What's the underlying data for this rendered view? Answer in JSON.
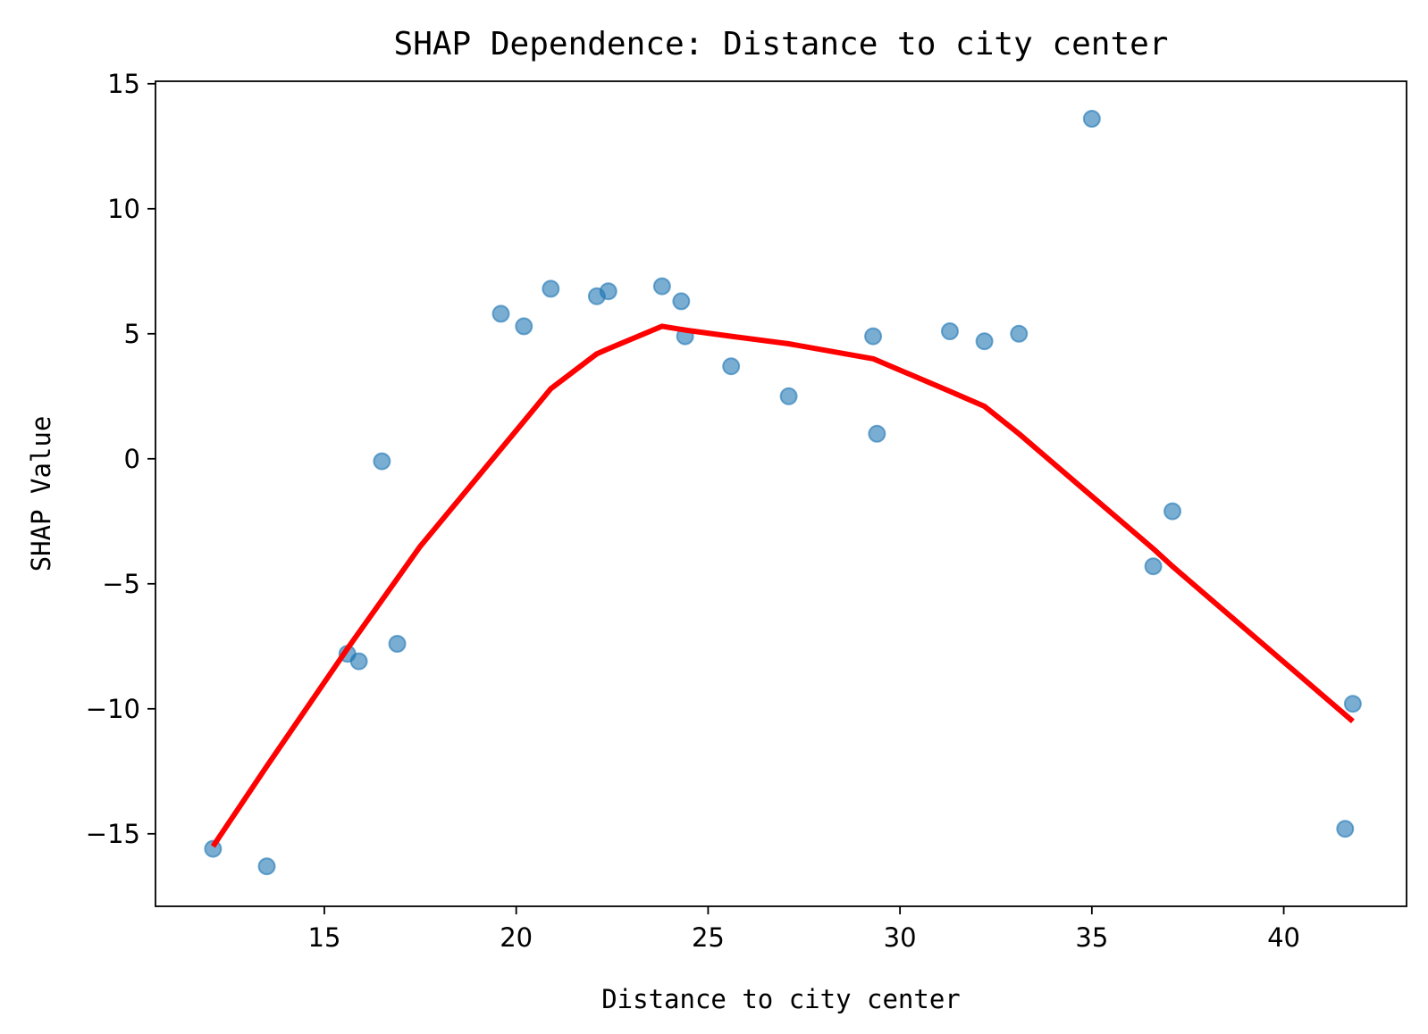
{
  "chart_data": {
    "type": "scatter",
    "title": "SHAP Dependence: Distance to city center",
    "xlabel": "Distance to city center",
    "ylabel": "SHAP Value",
    "xlim": [
      10.6,
      43.2
    ],
    "ylim": [
      -17.9,
      15.1
    ],
    "x_ticks": [
      15,
      20,
      25,
      30,
      35,
      40
    ],
    "y_ticks": [
      15,
      10,
      5,
      0,
      -5,
      -10,
      -15
    ],
    "x_tick_labels": [
      "15",
      "20",
      "25",
      "30",
      "35",
      "40"
    ],
    "y_tick_labels": [
      "15",
      "10",
      "5",
      "0",
      "−5",
      "−10",
      "−15"
    ],
    "grid": false,
    "legend": "none",
    "series": [
      {
        "kind": "scatter",
        "color": "#1f77b4",
        "alpha": 0.6,
        "points": [
          {
            "x": 12.1,
            "y": -15.6
          },
          {
            "x": 13.5,
            "y": -16.3
          },
          {
            "x": 15.6,
            "y": -7.8
          },
          {
            "x": 15.9,
            "y": -8.1
          },
          {
            "x": 16.5,
            "y": -0.1
          },
          {
            "x": 16.9,
            "y": -7.4
          },
          {
            "x": 19.6,
            "y": 5.8
          },
          {
            "x": 20.2,
            "y": 5.3
          },
          {
            "x": 20.9,
            "y": 6.8
          },
          {
            "x": 22.1,
            "y": 6.5
          },
          {
            "x": 22.4,
            "y": 6.7
          },
          {
            "x": 23.8,
            "y": 6.9
          },
          {
            "x": 24.3,
            "y": 6.3
          },
          {
            "x": 24.4,
            "y": 4.9
          },
          {
            "x": 25.6,
            "y": 3.7
          },
          {
            "x": 27.1,
            "y": 2.5
          },
          {
            "x": 29.3,
            "y": 4.9
          },
          {
            "x": 29.4,
            "y": 1.0
          },
          {
            "x": 31.3,
            "y": 5.1
          },
          {
            "x": 32.2,
            "y": 4.7
          },
          {
            "x": 33.1,
            "y": 5.0
          },
          {
            "x": 35.0,
            "y": 13.6
          },
          {
            "x": 36.6,
            "y": -4.3
          },
          {
            "x": 37.1,
            "y": -2.1
          },
          {
            "x": 41.6,
            "y": -14.8
          },
          {
            "x": 41.8,
            "y": -9.8
          }
        ]
      },
      {
        "kind": "line",
        "color": "#ff0000",
        "points": [
          {
            "x": 12.1,
            "y": -15.5
          },
          {
            "x": 13.5,
            "y": -12.3
          },
          {
            "x": 15.6,
            "y": -7.6
          },
          {
            "x": 17.5,
            "y": -3.5
          },
          {
            "x": 20.2,
            "y": 1.5
          },
          {
            "x": 20.9,
            "y": 2.8
          },
          {
            "x": 22.1,
            "y": 4.2
          },
          {
            "x": 22.4,
            "y": 4.4
          },
          {
            "x": 23.8,
            "y": 5.3
          },
          {
            "x": 24.4,
            "y": 5.15
          },
          {
            "x": 25.6,
            "y": 4.9
          },
          {
            "x": 27.1,
            "y": 4.6
          },
          {
            "x": 29.3,
            "y": 4.0
          },
          {
            "x": 31.3,
            "y": 2.7
          },
          {
            "x": 32.2,
            "y": 2.1
          },
          {
            "x": 33.1,
            "y": 1.0
          },
          {
            "x": 35.0,
            "y": -1.5
          },
          {
            "x": 36.6,
            "y": -3.6
          },
          {
            "x": 37.1,
            "y": -4.3
          },
          {
            "x": 41.8,
            "y": -10.5
          }
        ]
      }
    ]
  }
}
